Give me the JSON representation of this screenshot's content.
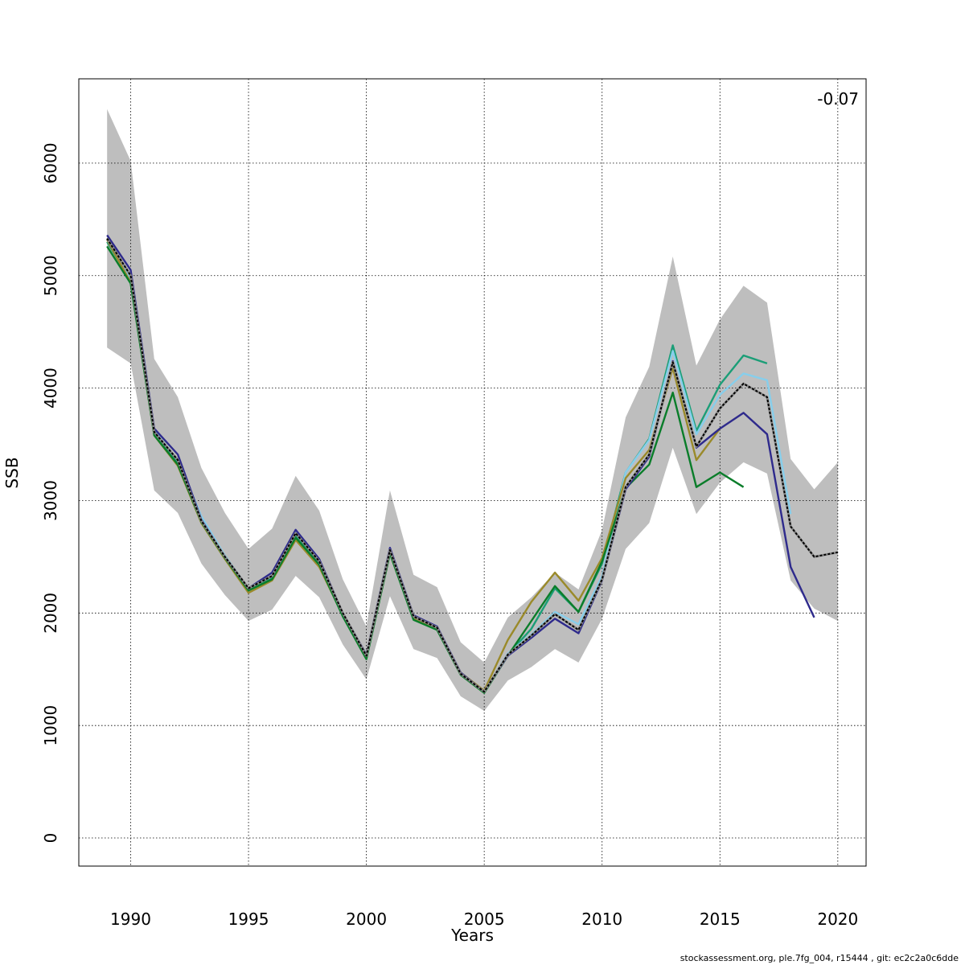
{
  "chart_data": {
    "type": "line",
    "title": "",
    "xlabel": "Years",
    "ylabel": "SSB",
    "xlim": [
      1987.8,
      2021.2
    ],
    "ylim": [
      -250,
      6750
    ],
    "x_ticks": [
      1990,
      1995,
      2000,
      2005,
      2010,
      2015,
      2020
    ],
    "y_ticks": [
      0,
      1000,
      2000,
      3000,
      4000,
      5000,
      6000
    ],
    "grid": true,
    "annotation": "-0.07",
    "confidence_band": {
      "x": [
        1989,
        1990,
        1991,
        1992,
        1993,
        1994,
        1995,
        1996,
        1997,
        1998,
        1999,
        2000,
        2001,
        2002,
        2003,
        2004,
        2005,
        2006,
        2007,
        2008,
        2009,
        2010,
        2011,
        2012,
        2013,
        2014,
        2015,
        2016,
        2017,
        2018,
        2019,
        2020
      ],
      "upper": [
        6480,
        6020,
        4260,
        3920,
        3290,
        2890,
        2570,
        2750,
        3220,
        2910,
        2300,
        1880,
        3090,
        2340,
        2230,
        1740,
        1560,
        1960,
        2140,
        2360,
        2210,
        2740,
        3740,
        4190,
        5170,
        4200,
        4610,
        4910,
        4760,
        3370,
        3100,
        3340
      ],
      "lower": [
        4360,
        4220,
        3090,
        2890,
        2440,
        2160,
        1930,
        2030,
        2330,
        2140,
        1720,
        1410,
        2150,
        1680,
        1600,
        1260,
        1130,
        1400,
        1520,
        1680,
        1560,
        1950,
        2570,
        2800,
        3470,
        2880,
        3160,
        3340,
        3240,
        2290,
        2040,
        1930
      ],
      "color": "#bebebe"
    },
    "series": [
      {
        "color": "#1b9e77",
        "x": [
          1989,
          1990,
          1991,
          1992,
          1993,
          1994,
          1995,
          1996,
          1997,
          1998,
          1999,
          2000,
          2001,
          2002,
          2003,
          2004,
          2005,
          2006,
          2007,
          2008,
          2009,
          2010,
          2011,
          2012,
          2013,
          2014,
          2015,
          2016,
          2017
        ],
        "values": [
          5300,
          4960,
          3610,
          3340,
          2830,
          2510,
          2210,
          2310,
          2690,
          2440,
          1990,
          1610,
          2560,
          1960,
          1870,
          1460,
          1300,
          1630,
          1860,
          2220,
          2010,
          2440,
          3250,
          3550,
          4380,
          3620,
          4030,
          4290,
          4220
        ]
      },
      {
        "color": "#87ceeb",
        "x": [
          1989,
          1990,
          1991,
          1992,
          1993,
          1994,
          1995,
          1996,
          1997,
          1998,
          1999,
          2000,
          2001,
          2002,
          2003,
          2004,
          2005,
          2006,
          2007,
          2008,
          2009,
          2010,
          2011,
          2012,
          2013,
          2014,
          2015,
          2016,
          2017,
          2018
        ],
        "values": [
          5320,
          4970,
          3620,
          3360,
          2860,
          2510,
          2220,
          2330,
          2720,
          2460,
          1990,
          1620,
          2570,
          1970,
          1870,
          1460,
          1300,
          1640,
          1810,
          2010,
          1900,
          2330,
          3250,
          3540,
          4330,
          3590,
          3940,
          4130,
          4070,
          2880
        ]
      },
      {
        "color": "#9a8a2a",
        "x": [
          1989,
          1990,
          1991,
          1992,
          1993,
          1994,
          1995,
          1996,
          1997,
          1998,
          1999,
          2000,
          2001,
          2002,
          2003,
          2004,
          2005,
          2006,
          2007,
          2008,
          2009,
          2010,
          2011,
          2012,
          2013,
          2014,
          2015
        ],
        "values": [
          5320,
          4940,
          3580,
          3310,
          2800,
          2480,
          2180,
          2290,
          2650,
          2410,
          1980,
          1600,
          2530,
          1950,
          1870,
          1470,
          1310,
          1760,
          2100,
          2360,
          2110,
          2490,
          3200,
          3450,
          4180,
          3360,
          3640
        ]
      },
      {
        "color": "#0a7d2a",
        "x": [
          1989,
          1990,
          1991,
          1992,
          1993,
          1994,
          1995,
          1996,
          1997,
          1998,
          1999,
          2000,
          2001,
          2002,
          2003,
          2004,
          2005,
          2006,
          2007,
          2008,
          2009,
          2010,
          2011,
          2012,
          2013,
          2014,
          2015,
          2016
        ],
        "values": [
          5260,
          4930,
          3580,
          3320,
          2810,
          2490,
          2200,
          2300,
          2670,
          2430,
          1970,
          1590,
          2530,
          1940,
          1850,
          1450,
          1290,
          1620,
          1930,
          2240,
          2010,
          2460,
          3110,
          3320,
          3960,
          3120,
          3250,
          3120
        ]
      },
      {
        "color": "#2e2a8c",
        "x": [
          1989,
          1990,
          1991,
          1992,
          1993,
          1994,
          1995,
          1996,
          1997,
          1998,
          1999,
          2000,
          2001,
          2002,
          2003,
          2004,
          2005,
          2006,
          2007,
          2008,
          2009,
          2010,
          2011,
          2012,
          2013,
          2014,
          2015,
          2016,
          2017,
          2018,
          2019
        ],
        "values": [
          5360,
          5050,
          3640,
          3410,
          2830,
          2500,
          2220,
          2360,
          2740,
          2480,
          2000,
          1630,
          2580,
          1980,
          1880,
          1470,
          1300,
          1620,
          1780,
          1950,
          1820,
          2290,
          3100,
          3390,
          4240,
          3470,
          3640,
          3780,
          3590,
          2410,
          1960
        ]
      },
      {
        "color": "#000000",
        "dashed": true,
        "x": [
          1989,
          1990,
          1991,
          1992,
          1993,
          1994,
          1995,
          1996,
          1997,
          1998,
          1999,
          2000,
          2001,
          2002,
          2003,
          2004,
          2005,
          2006,
          2007,
          2008,
          2009,
          2010,
          2011,
          2012,
          2013,
          2014,
          2015,
          2016,
          2017,
          2018,
          2019,
          2020
        ],
        "values": [
          5330,
          5000,
          3610,
          3360,
          2820,
          2500,
          2220,
          2330,
          2710,
          2460,
          2000,
          1620,
          2560,
          1970,
          1870,
          1460,
          1300,
          1630,
          1800,
          1990,
          1850,
          2300,
          3120,
          3410,
          4230,
          3480,
          3820,
          4040,
          3920,
          2770,
          2500,
          2540
        ]
      }
    ]
  },
  "footer": "stockassessment.org, ple.7fg_004, r15444 , git: ec2c2a0c6dde"
}
